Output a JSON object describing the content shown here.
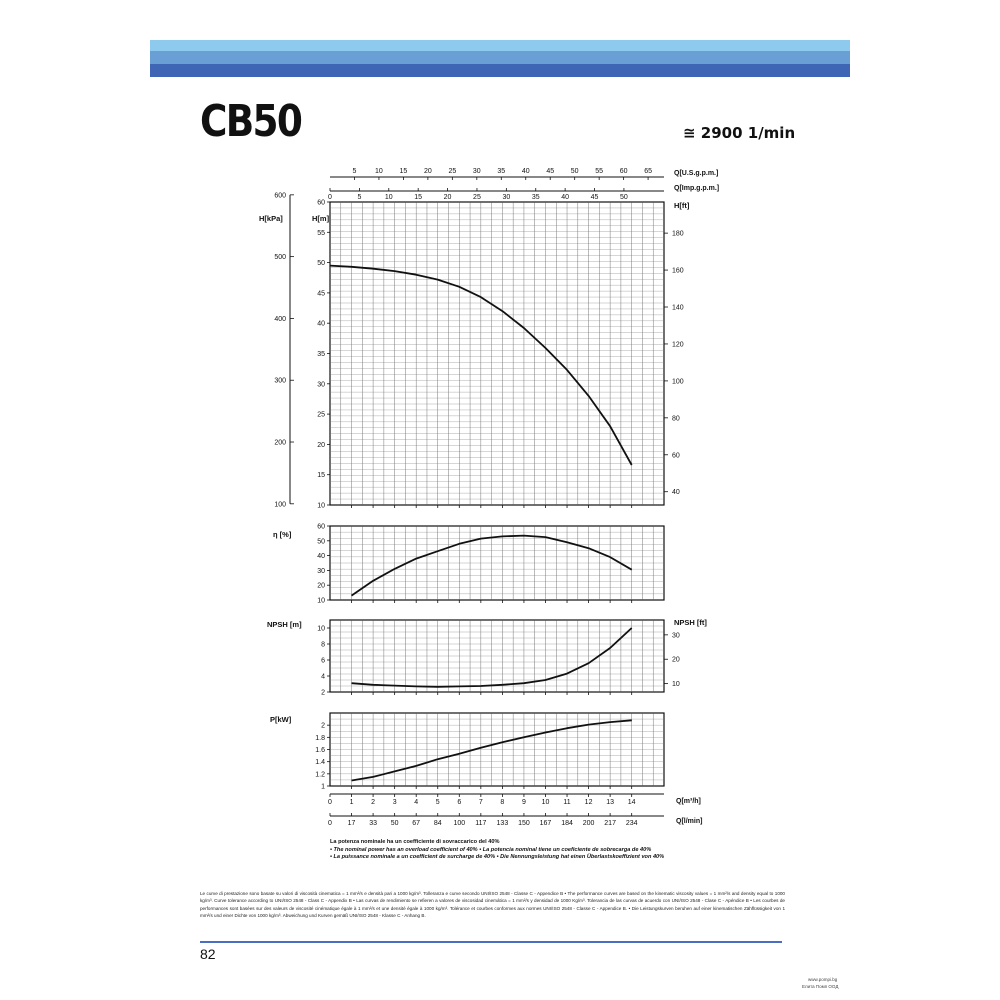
{
  "header": {
    "title": "CB50",
    "speed": "≅ 2900 1/min"
  },
  "colors": {
    "band_light": "#8ec9ee",
    "band_mid": "#6a9fd6",
    "band_dark": "#3f66b4",
    "ink": "#111111"
  },
  "notes": {
    "line1": "La potenza nominale ha un coefficiente di sovraccarico del 40%",
    "line2": "• The nominal power has an overload coefficient of 40%  • La potencia nominal tiene un coeficiente de sobrecarga de 40%",
    "line3": "• La puissance nominale a un coefficient de surcharge de 40%  • Die Nennungsleistung hat einen Überlastskoeffizient von 40%"
  },
  "footer_text": "Le curve di prestazione sono basate su valori di viscosità cinematica = 1 mm²/s e densità pari a 1000 kg/m³. Tolleranza e curve secondo UNI/ISO 2548 - Classe C - Appendice B • The performance curves are based on the kinematic viscosity values = 1 mm²/s and density equal to 1000 kg/m³. Curve tolerance according to UNI/ISO 2548 - Class C - Appendix B • Las curvas de rendimiento se refieren a valores de viscosidad cinemática = 1 mm²/s y densidad de 1000 Kg/m³. Tolerancia de las curvas de acuerdo con UNI/ISO 2548 - Clase C - Apéndice B • Les courbes de performances sont basées sur des valeurs de viscosité cinématique égale à 1 mm²/s et une densité égale à 1000 kg/m³. Tolérance et courbes conformes aux normes UNI/ISO 2548 - Classe C - Appendice B. • Die Leistungskurven beruhen auf einer kinematischen Zähflüssigkeit von 1 mm²/s und einer Dichte von 1000 kg/m³. Abweichung und Kurven gemäß UNI/ISO 2548 - Klasse C - Anhang B.",
  "page_number": "82",
  "watermark": {
    "line1": "www.pompi.bg",
    "line2": "Елита Помп ООД"
  },
  "chart_data": {
    "type": "line",
    "x_axes": {
      "primary": {
        "label": "Q[m³/h]",
        "ticks": [
          "0",
          "1",
          "2",
          "3",
          "4",
          "5",
          "6",
          "7",
          "8",
          "9",
          "10",
          "11",
          "12",
          "13",
          "14"
        ]
      },
      "secondary": {
        "label": "Q[l/min]",
        "ticks": [
          "0",
          "17",
          "33",
          "50",
          "67",
          "84",
          "100",
          "117",
          "133",
          "150",
          "167",
          "184",
          "200",
          "217",
          "234"
        ]
      },
      "usgpm": {
        "label": "Q[U.S.g.p.m.]",
        "ticks": [
          "5",
          "10",
          "15",
          "20",
          "25",
          "30",
          "35",
          "40",
          "45",
          "50",
          "55",
          "60",
          "65"
        ]
      },
      "impgpm": {
        "label": "Q[Imp.g.p.m.]",
        "ticks": [
          "0",
          "5",
          "10",
          "15",
          "20",
          "25",
          "30",
          "35",
          "40",
          "45",
          "50"
        ]
      },
      "xlim": [
        0,
        15.5
      ]
    },
    "panels": [
      {
        "name": "head",
        "ylabel": "H[m]",
        "ylim": [
          10,
          60
        ],
        "yticks": [
          "10",
          "15",
          "20",
          "25",
          "30",
          "35",
          "40",
          "45",
          "50",
          "55",
          "60"
        ],
        "left_axis": {
          "label": "H[kPa]",
          "ticks": [
            "100",
            "200",
            "300",
            "400",
            "500",
            "600"
          ]
        },
        "right_axis": {
          "label": "H[ft]",
          "ticks": [
            "40",
            "60",
            "80",
            "100",
            "120",
            "140",
            "160",
            "180"
          ]
        },
        "x": [
          0,
          1,
          2,
          3,
          4,
          5,
          6,
          7,
          8,
          9,
          10,
          11,
          12,
          13,
          14
        ],
        "y": [
          49.5,
          49.3,
          49.0,
          48.6,
          48.0,
          47.2,
          46.0,
          44.3,
          42.0,
          39.2,
          35.9,
          32.3,
          28.0,
          23.0,
          16.6
        ]
      },
      {
        "name": "efficiency",
        "ylabel": "η [%]",
        "ylim": [
          10,
          60
        ],
        "yticks": [
          "10",
          "20",
          "30",
          "40",
          "50",
          "60"
        ],
        "x": [
          1,
          2,
          3,
          4,
          5,
          6,
          7,
          8,
          9,
          10,
          11,
          12,
          13,
          14
        ],
        "y": [
          13,
          23,
          31,
          38,
          43,
          48,
          51.5,
          53,
          53.5,
          52.5,
          49,
          45,
          39,
          30.5
        ]
      },
      {
        "name": "npsh",
        "ylabel": "NPSH [m]",
        "ylim": [
          2,
          11
        ],
        "yticks": [
          "2",
          "4",
          "6",
          "8",
          "10"
        ],
        "right_axis": {
          "label": "NPSH [ft]",
          "ticks": [
            "10",
            "20",
            "30"
          ]
        },
        "x": [
          1,
          2,
          3,
          4,
          5,
          6,
          7,
          8,
          9,
          10,
          11,
          12,
          13,
          14
        ],
        "y": [
          3.1,
          2.9,
          2.8,
          2.7,
          2.65,
          2.7,
          2.75,
          2.9,
          3.1,
          3.5,
          4.3,
          5.6,
          7.5,
          10.0
        ]
      },
      {
        "name": "power",
        "ylabel": "P[kW]",
        "ylim": [
          1,
          2.2
        ],
        "yticks": [
          "1",
          "1.2",
          "1.4",
          "1.6",
          "1.8",
          "2"
        ],
        "x": [
          1,
          2,
          3,
          4,
          5,
          6,
          7,
          8,
          9,
          10,
          11,
          12,
          13,
          14
        ],
        "y": [
          1.09,
          1.15,
          1.24,
          1.33,
          1.44,
          1.53,
          1.63,
          1.72,
          1.8,
          1.88,
          1.95,
          2.01,
          2.05,
          2.08
        ]
      }
    ]
  }
}
